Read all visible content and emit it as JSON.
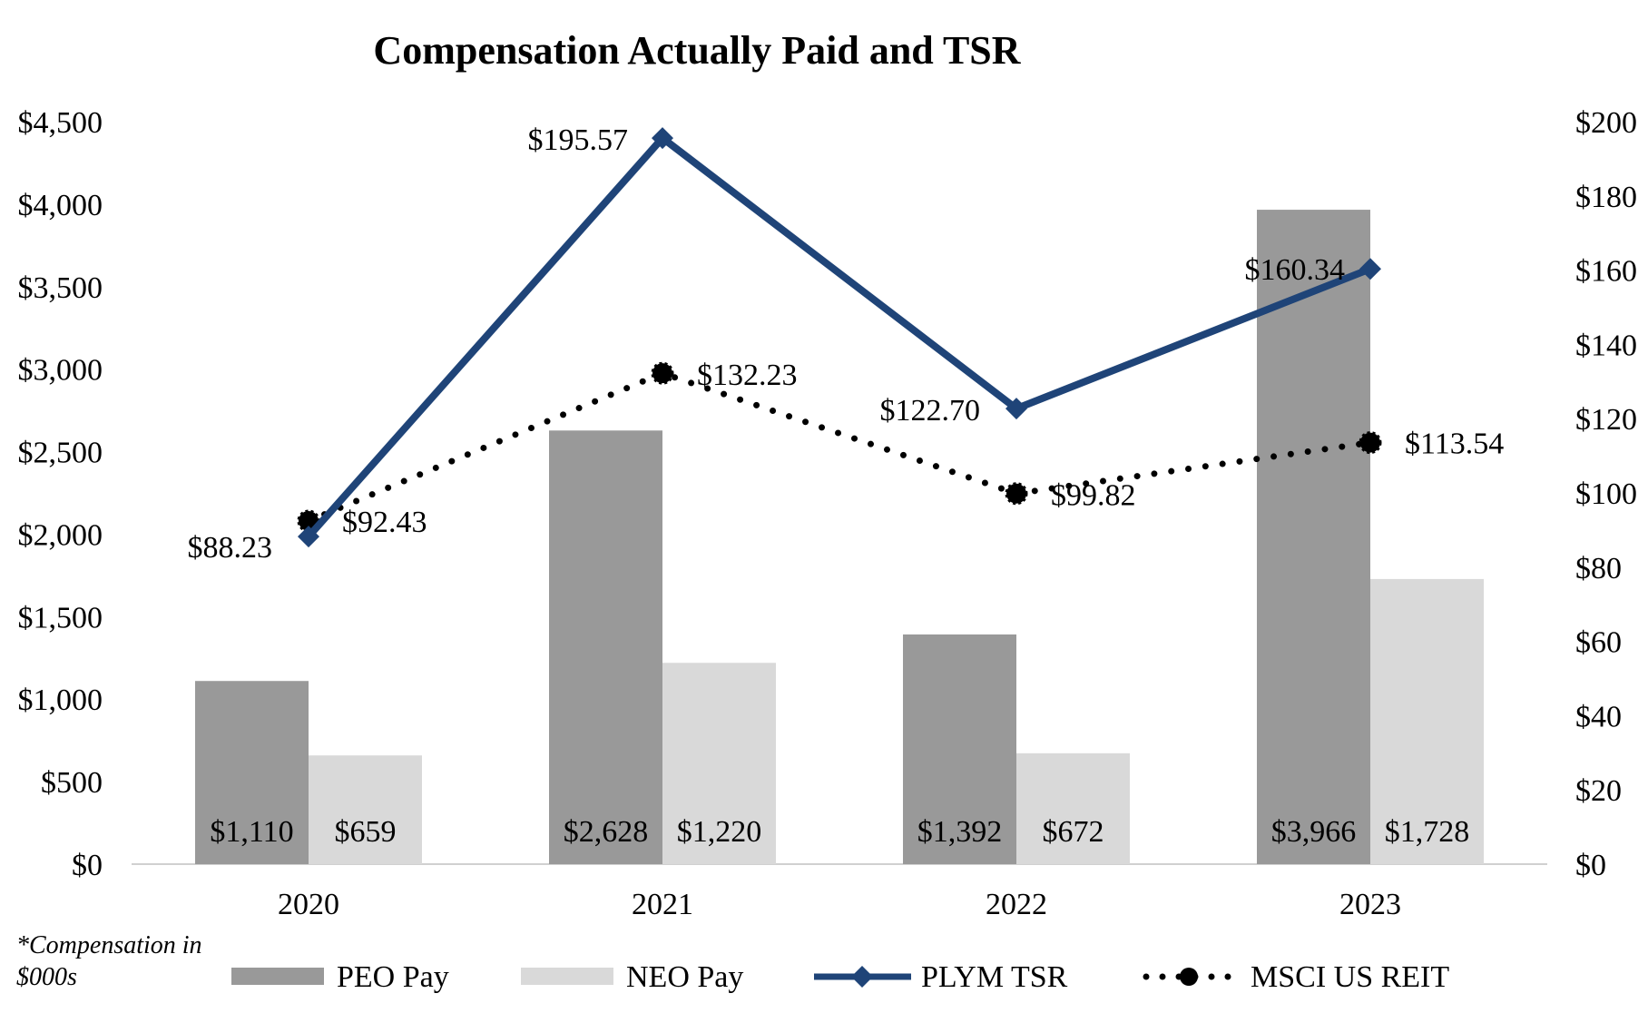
{
  "chart_data": {
    "type": "bar",
    "title": "Compensation Actually Paid and TSR",
    "note_line1": "*Compensation in",
    "note_line2": "$000s",
    "categories": [
      "2020",
      "2021",
      "2022",
      "2023"
    ],
    "y_left": {
      "min": 0,
      "max": 4500,
      "step": 500,
      "tick_labels": [
        "$0",
        "$500",
        "$1,000",
        "$1,500",
        "$2,000",
        "$2,500",
        "$3,000",
        "$3,500",
        "$4,000",
        "$4,500"
      ]
    },
    "y_right": {
      "min": 0,
      "max": 200,
      "step": 20,
      "tick_labels": [
        "$0",
        "$20",
        "$40",
        "$60",
        "$80",
        "$100",
        "$120",
        "$140",
        "$160",
        "$180",
        "$200"
      ]
    },
    "series": [
      {
        "name": "PEO Pay",
        "kind": "bar",
        "axis": "left",
        "color": "#999999",
        "values": [
          1110,
          2628,
          1392,
          3966
        ],
        "labels": [
          "$1,110",
          "$2,628",
          "$1,392",
          "$3,966"
        ]
      },
      {
        "name": "NEO Pay",
        "kind": "bar",
        "axis": "left",
        "color": "#d9d9d9",
        "values": [
          659,
          1220,
          672,
          1728
        ],
        "labels": [
          "$659",
          "$1,220",
          "$672",
          "$1,728"
        ]
      },
      {
        "name": "PLYM TSR",
        "kind": "line",
        "axis": "right",
        "color": "#1f4478",
        "values": [
          88.23,
          195.57,
          122.7,
          160.34
        ],
        "labels": [
          "$88.23",
          "$195.57",
          "$122.70",
          "$160.34"
        ]
      },
      {
        "name": "MSCI US REIT",
        "kind": "dotted-line",
        "axis": "right",
        "color": "#000000",
        "values": [
          92.43,
          132.23,
          99.82,
          113.54
        ],
        "labels": [
          "$92.43",
          "$132.23",
          "$99.82",
          "$113.54"
        ]
      }
    ]
  }
}
